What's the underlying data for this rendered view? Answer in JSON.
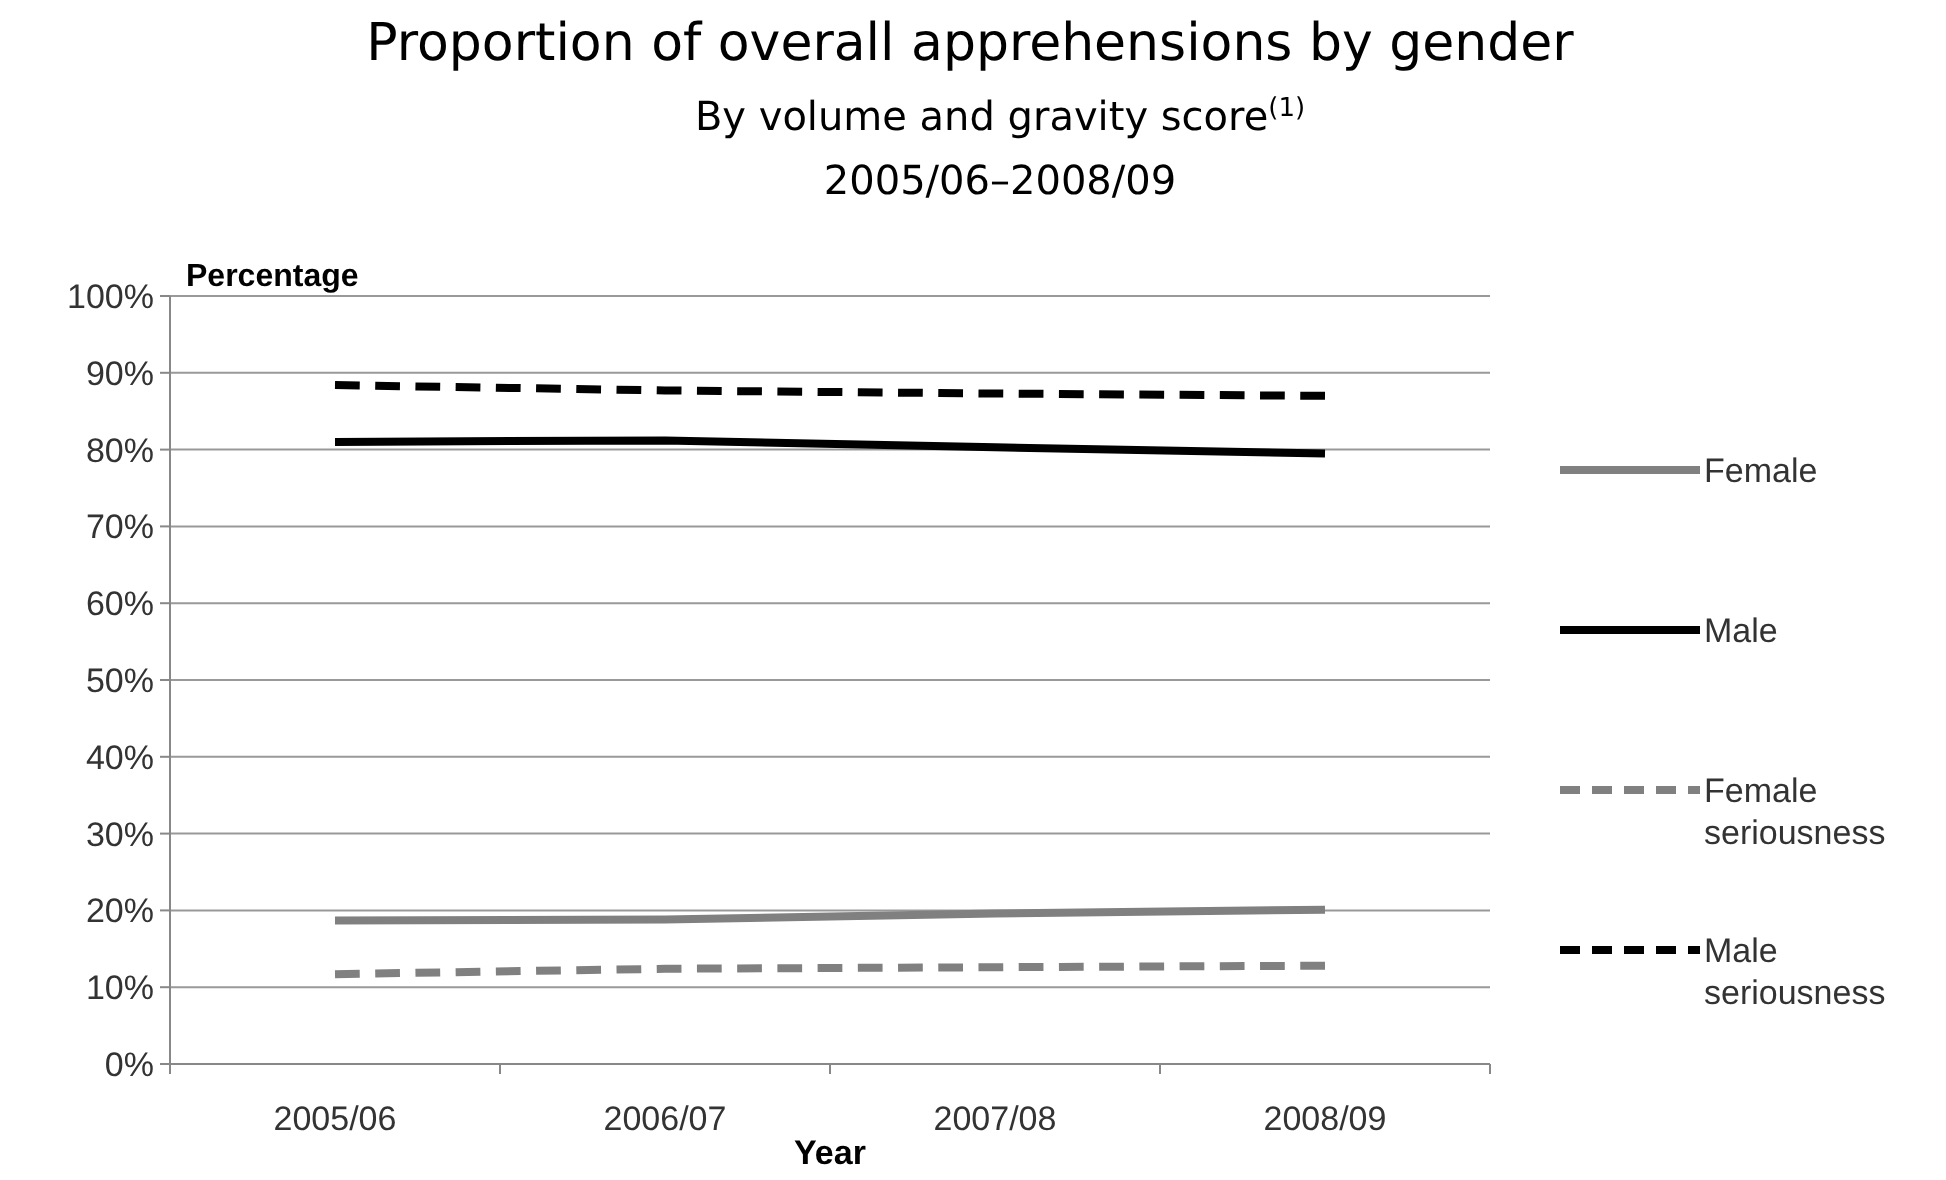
{
  "chart_data": {
    "type": "line",
    "title": "Proportion of overall apprehensions by gender",
    "subtitle": "By volume and gravity score$^{(1)}$\n2005/06–2008/09",
    "xlabel": "Year",
    "ylabel": "Percentage",
    "categories": [
      "2005/06",
      "2006/07",
      "2007/08",
      "2008/09"
    ],
    "series": [
      {
        "name": "Female",
        "color": "#808080",
        "values": [
          18.7,
          18.8,
          19.6,
          20.1
        ],
        "line_style": "solid"
      },
      {
        "name": "Male",
        "color": "#000000",
        "values": [
          81,
          81.2,
          80.3,
          79.5
        ],
        "line_style": "solid"
      },
      {
        "name": "Female seriousness",
        "color": "#808080",
        "values": [
          11.7,
          12.4,
          12.6,
          12.8
        ],
        "line_style": "dashed"
      },
      {
        "name": "Male seriousness",
        "color": "#000000",
        "values": [
          88.4,
          87.7,
          87.3,
          87.0
        ],
        "line_style": "dashed"
      }
    ],
    "ylim": [
      0,
      100
    ],
    "yticks": [
      {
        "value": 0,
        "label": "0%"
      },
      {
        "value": 10,
        "label": "10%"
      },
      {
        "value": 20,
        "label": "20%"
      },
      {
        "value": 30,
        "label": "30%"
      },
      {
        "value": 40,
        "label": "40%"
      },
      {
        "value": 50,
        "label": "50%"
      },
      {
        "value": 60,
        "label": "60%"
      },
      {
        "value": 70,
        "label": "70%"
      },
      {
        "value": 80,
        "label": "80%"
      },
      {
        "value": 90,
        "label": "90%"
      },
      {
        "value": 100,
        "label": "100%"
      }
    ],
    "grid": "y",
    "legend": "right",
    "marker": "none"
  }
}
